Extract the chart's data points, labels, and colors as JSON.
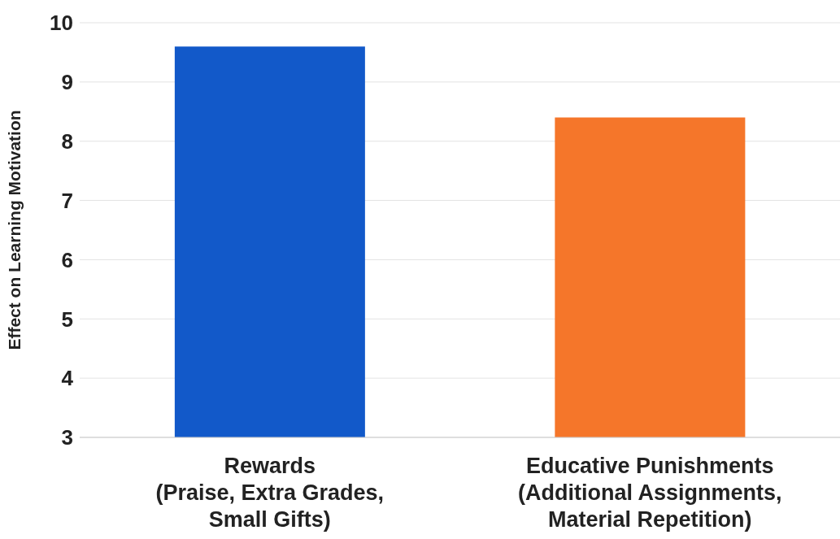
{
  "chart_data": {
    "type": "bar",
    "ylabel": "Effect on Learning Motivation",
    "categories": [
      "Rewards\n(Praise, Extra Grades,\nSmall Gifts)",
      "Educative Punishments\n(Additional Assignments,\nMaterial Repetition)"
    ],
    "values": [
      9.6,
      8.4
    ],
    "colors": [
      "#1259c9",
      "#f5762a"
    ],
    "ylim": [
      3,
      10
    ],
    "yticks": [
      3,
      4,
      5,
      6,
      7,
      8,
      9,
      10
    ],
    "grid": "y"
  }
}
